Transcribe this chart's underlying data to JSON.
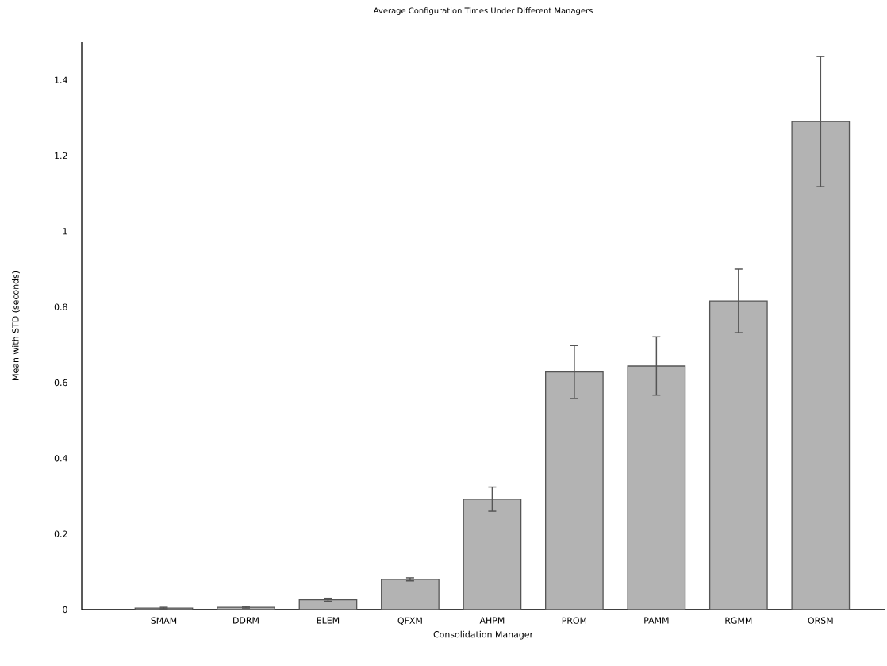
{
  "chart_data": {
    "type": "bar",
    "title": "Average Configuration Times Under Different Managers",
    "xlabel": "Consolidation Manager",
    "ylabel": "Mean with STD (seconds)",
    "categories": [
      "SMAM",
      "DDRM",
      "ELEM",
      "QFXM",
      "AHPM",
      "PROM",
      "PAMM",
      "RGMM",
      "ORSM"
    ],
    "values": [
      0.004,
      0.006,
      0.026,
      0.08,
      0.292,
      0.628,
      0.644,
      0.816,
      1.29
    ],
    "errors": [
      0.002,
      0.002,
      0.004,
      0.004,
      0.032,
      0.07,
      0.077,
      0.084,
      0.172
    ],
    "color": "#b3b3b3",
    "ylim": [
      0,
      1.5
    ],
    "yticks": [
      0,
      0.2,
      0.4,
      0.6,
      0.8,
      1,
      1.2,
      1.4
    ],
    "grid": false
  }
}
